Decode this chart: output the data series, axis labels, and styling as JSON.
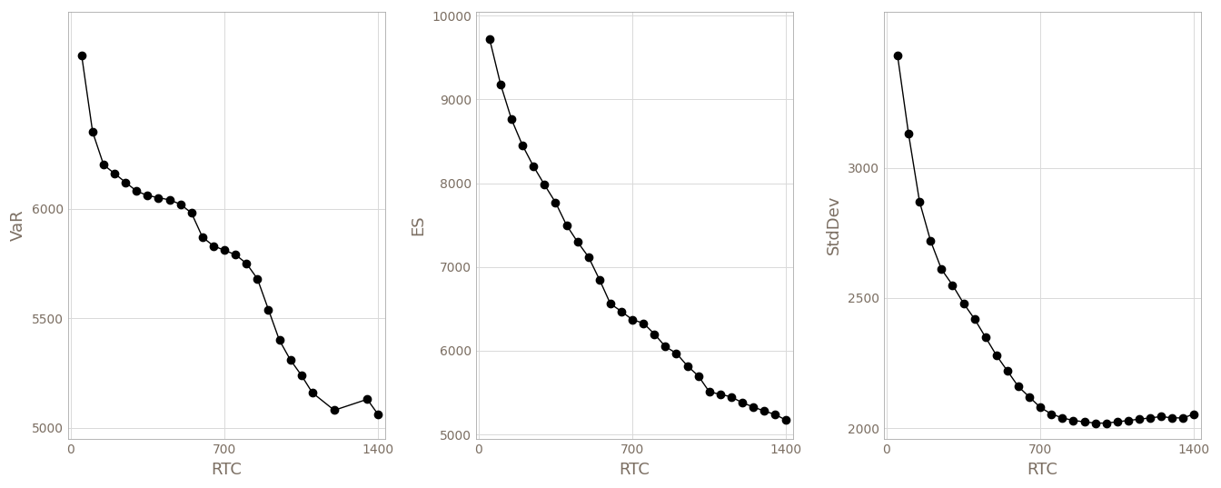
{
  "var_x": [
    50,
    100,
    150,
    200,
    250,
    300,
    350,
    400,
    450,
    500,
    550,
    600,
    650,
    700,
    750,
    800,
    850,
    900,
    950,
    1000,
    1050,
    1100,
    1200,
    1350,
    1400
  ],
  "var_y": [
    6700,
    6350,
    6200,
    6160,
    6120,
    6080,
    6060,
    6050,
    6040,
    6020,
    5980,
    5870,
    5830,
    5810,
    5790,
    5750,
    5680,
    5540,
    5400,
    5310,
    5240,
    5160,
    5080,
    5130,
    5060
  ],
  "es_x": [
    50,
    100,
    150,
    200,
    250,
    300,
    350,
    400,
    450,
    500,
    550,
    600,
    650,
    700,
    750,
    800,
    850,
    900,
    950,
    1000,
    1050,
    1100,
    1150,
    1200,
    1250,
    1300,
    1350,
    1400
  ],
  "es_y": [
    9720,
    9180,
    8760,
    8450,
    8200,
    7980,
    7770,
    7500,
    7300,
    7120,
    6850,
    6560,
    6470,
    6370,
    6330,
    6200,
    6050,
    5970,
    5820,
    5700,
    5510,
    5480,
    5450,
    5380,
    5330,
    5280,
    5240,
    5170
  ],
  "std_x": [
    50,
    100,
    150,
    200,
    250,
    300,
    350,
    400,
    450,
    500,
    550,
    600,
    650,
    700,
    750,
    800,
    850,
    900,
    950,
    1000,
    1050,
    1100,
    1150,
    1200,
    1250,
    1300,
    1350,
    1400
  ],
  "std_y": [
    3430,
    3130,
    2870,
    2720,
    2610,
    2550,
    2480,
    2420,
    2350,
    2280,
    2220,
    2160,
    2120,
    2080,
    2055,
    2040,
    2030,
    2025,
    2020,
    2020,
    2025,
    2030,
    2035,
    2040,
    2045,
    2040,
    2040,
    2055
  ],
  "var_ylim": [
    4950,
    6900
  ],
  "var_yticks": [
    5000,
    5500,
    6000
  ],
  "es_ylim": [
    4950,
    10050
  ],
  "es_yticks": [
    5000,
    6000,
    7000,
    8000,
    9000,
    10000
  ],
  "std_ylim": [
    1960,
    3600
  ],
  "std_yticks": [
    2000,
    2500,
    3000
  ],
  "xlim": [
    -10,
    1430
  ],
  "xticks": [
    0,
    700,
    1400
  ],
  "xlabel": "RTC",
  "ylabels": [
    "VaR",
    "ES",
    "StdDev"
  ],
  "line_color": "#000000",
  "marker": "o",
  "markersize": 6,
  "linewidth": 1.0,
  "panel_bg": "#ffffff",
  "fig_bg": "#ffffff",
  "grid_color": "#d9d9d9",
  "tick_label_color": "#7f7f7f",
  "axis_label_color": "#7B6E62",
  "tick_label_fontsize": 10,
  "axis_label_fontsize": 13
}
